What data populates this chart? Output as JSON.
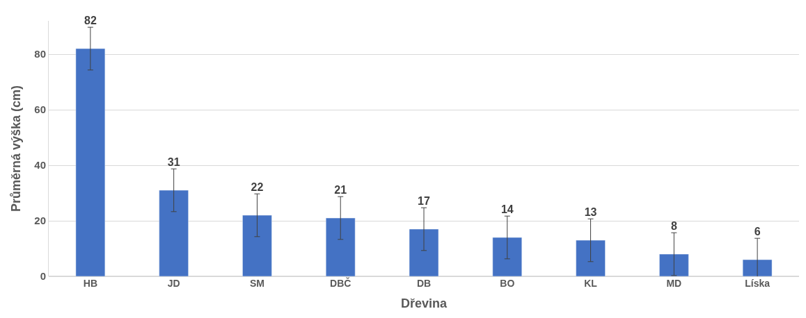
{
  "chart_data": {
    "type": "bar",
    "xlabel": "Dřevina",
    "ylabel": "Průměrná výška (cm)",
    "categories": [
      "HB",
      "JD",
      "SM",
      "DBČ",
      "DB",
      "BO",
      "KL",
      "MD",
      "Líska"
    ],
    "values": [
      82,
      31,
      22,
      21,
      17,
      14,
      13,
      8,
      6
    ],
    "errors": [
      7.7,
      7.7,
      7.7,
      7.7,
      7.7,
      7.7,
      7.7,
      7.7,
      7.7
    ],
    "color": "#4472c4",
    "data_labels": true,
    "ylim": [
      0,
      92
    ],
    "yticks": [
      0,
      20,
      40,
      60,
      80
    ],
    "grid": "y"
  }
}
